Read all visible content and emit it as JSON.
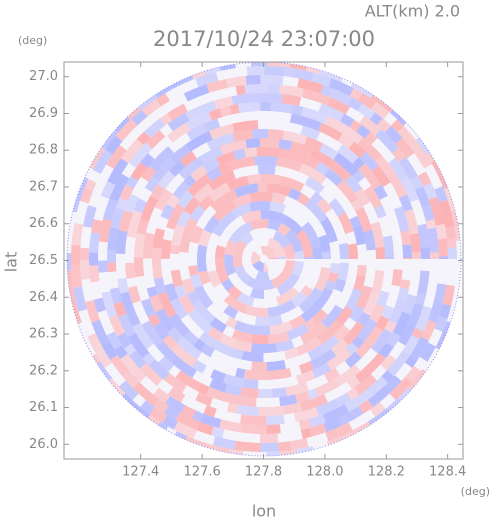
{
  "chart_data": {
    "type": "radar-ppi",
    "title": "2017/10/24 23:07:00",
    "subtitle": "ALT(km) 2.0",
    "x_label": "lon",
    "x_unit": "(deg)",
    "y_label": "lat",
    "y_unit": "(deg)",
    "xlim": [
      127.15,
      128.45
    ],
    "ylim": [
      25.96,
      27.04
    ],
    "xticks": [
      127.4,
      127.6,
      127.8,
      {
        "value": 128.0,
        "label": "128.0"
      },
      128.2,
      128.4
    ],
    "yticks": [
      {
        "value": 26.0,
        "label": "26.0"
      },
      26.1,
      26.2,
      26.3,
      26.4,
      26.5,
      26.6,
      26.7,
      26.8,
      26.9,
      {
        "value": 27.0,
        "label": "27.0"
      }
    ]
  }
}
